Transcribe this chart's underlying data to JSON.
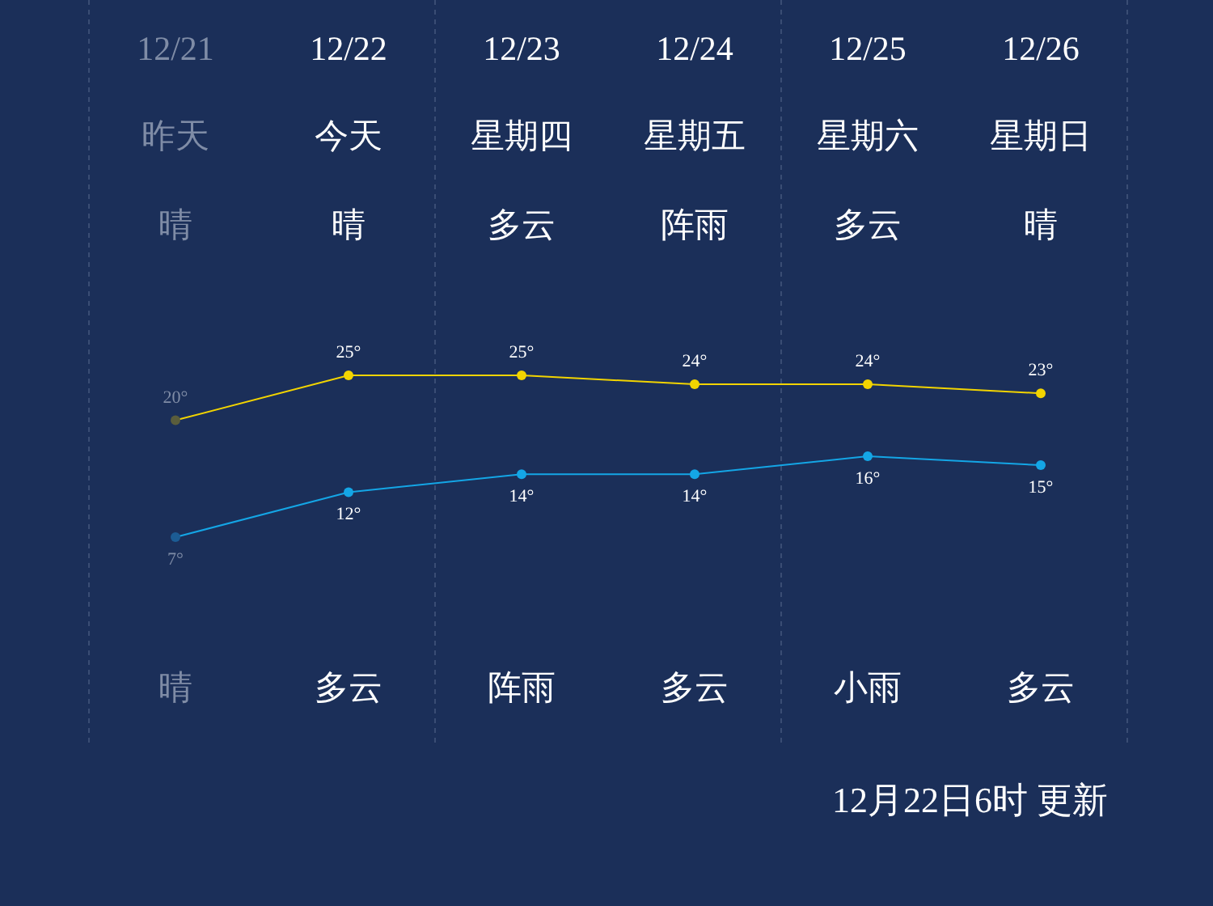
{
  "chart_data": {
    "type": "line",
    "categories": [
      "12/21",
      "12/22",
      "12/23",
      "12/24",
      "12/25",
      "12/26"
    ],
    "series": [
      {
        "color": "#f2d400",
        "colors": [
          "#5a5d3c",
          "#f2d400",
          "#f2d400",
          "#f2d400",
          "#f2d400",
          "#f2d400"
        ],
        "values": [
          20,
          25,
          25,
          24,
          24,
          23
        ],
        "value_labels": [
          "20°",
          "25°",
          "25°",
          "24°",
          "24°",
          "23°"
        ]
      },
      {
        "color": "#14a6e6",
        "colors": [
          "#1c5c94",
          "#14a6e6",
          "#14a6e6",
          "#14a6e6",
          "#14a6e6",
          "#14a6e6"
        ],
        "values": [
          7,
          12,
          14,
          14,
          16,
          15
        ],
        "value_labels": [
          "7°",
          "12°",
          "14°",
          "14°",
          "16°",
          "15°"
        ]
      }
    ],
    "marker": "circle",
    "grid": "x",
    "annotations": [
      "昨天",
      "晴",
      "晴",
      "今天",
      "晴",
      "多云",
      "星期四",
      "多云",
      "阵雨",
      "星期五",
      "阵雨",
      "多云",
      "星期六",
      "多云",
      "小雨",
      "星期日",
      "晴",
      "多云",
      "12月22日6时 更新"
    ]
  }
}
